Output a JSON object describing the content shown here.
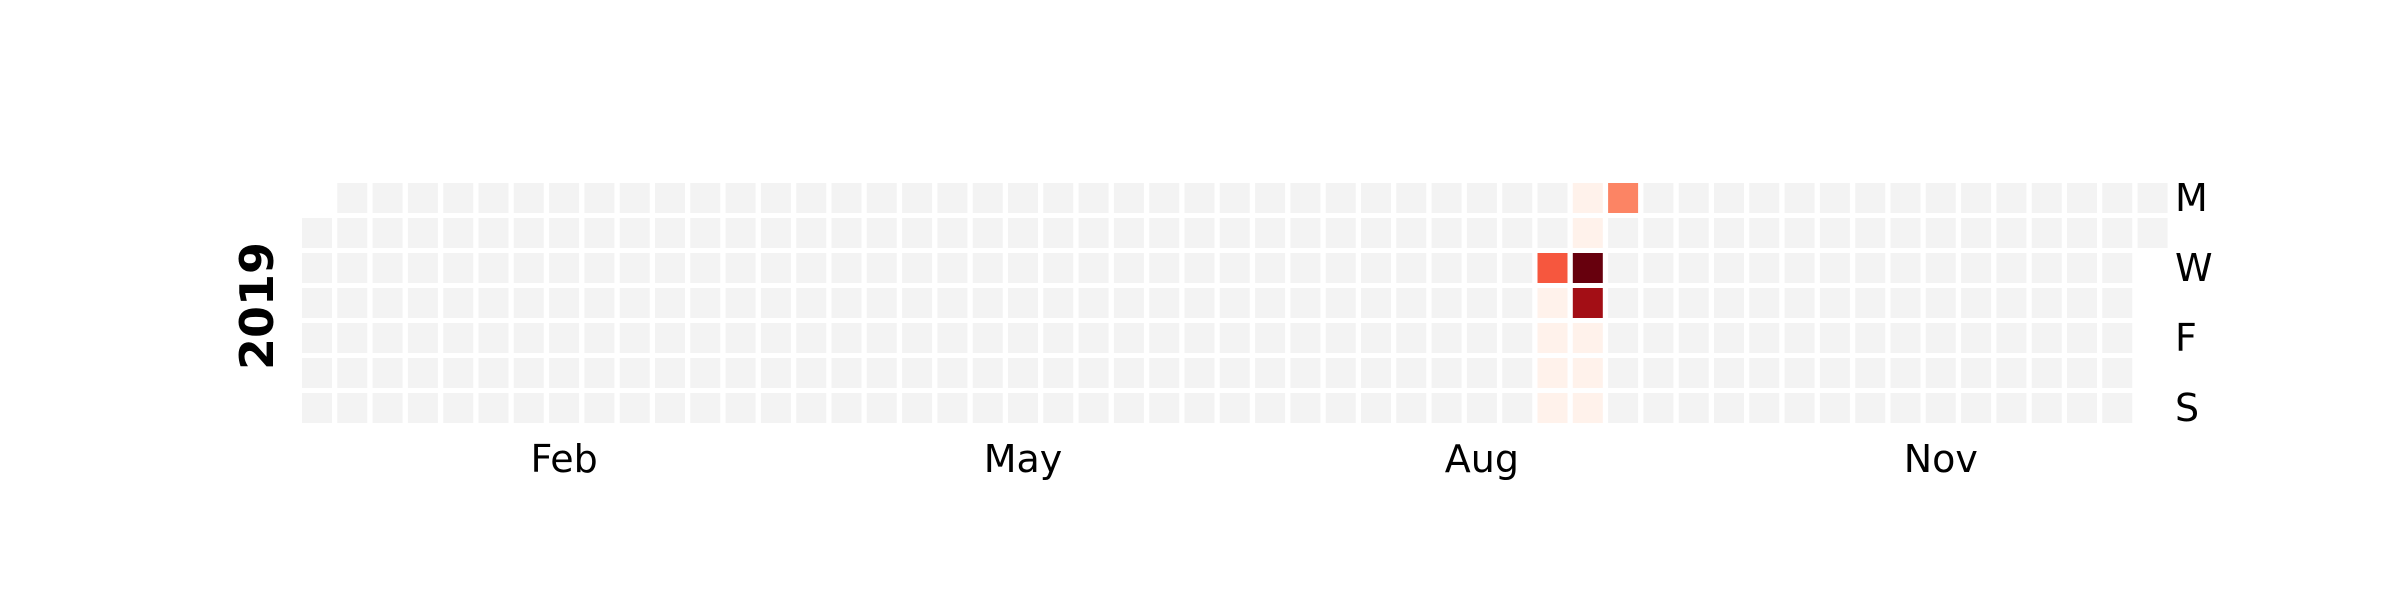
{
  "chart_data": {
    "type": "heatmap",
    "title": "",
    "year": "2019",
    "colormap": "Reds",
    "empty_color": "#f3f3f3",
    "start_weekday": "Tuesday",
    "weeks": 53,
    "rows": [
      "Mon",
      "Tue",
      "Wed",
      "Thu",
      "Fri",
      "Sat",
      "Sun"
    ],
    "row_labels": [
      {
        "row": 0,
        "text": "M"
      },
      {
        "row": 2,
        "text": "W"
      },
      {
        "row": 4,
        "text": "F"
      },
      {
        "row": 6,
        "text": "S"
      }
    ],
    "month_labels": [
      {
        "week": 7,
        "text": "Feb"
      },
      {
        "week": 20,
        "text": "May"
      },
      {
        "week": 33,
        "text": "Aug"
      },
      {
        "week": 46,
        "text": "Nov"
      }
    ],
    "vmax": 1,
    "cells": [
      {
        "week": 35,
        "day": 3,
        "value": 0.02
      },
      {
        "week": 35,
        "day": 4,
        "value": 0.02
      },
      {
        "week": 35,
        "day": 5,
        "value": 0.02
      },
      {
        "week": 35,
        "day": 6,
        "value": 0.02
      },
      {
        "week": 36,
        "day": 0,
        "value": 0.02
      },
      {
        "week": 36,
        "day": 1,
        "value": 0.02
      },
      {
        "week": 36,
        "day": 4,
        "value": 0.02
      },
      {
        "week": 36,
        "day": 5,
        "value": 0.02
      },
      {
        "week": 36,
        "day": 6,
        "value": 0.02
      },
      {
        "week": 35,
        "day": 2,
        "value": 0.55
      },
      {
        "week": 36,
        "day": 2,
        "value": 1.0
      },
      {
        "week": 36,
        "day": 3,
        "value": 0.88
      },
      {
        "week": 37,
        "day": 0,
        "value": 0.42
      }
    ]
  }
}
